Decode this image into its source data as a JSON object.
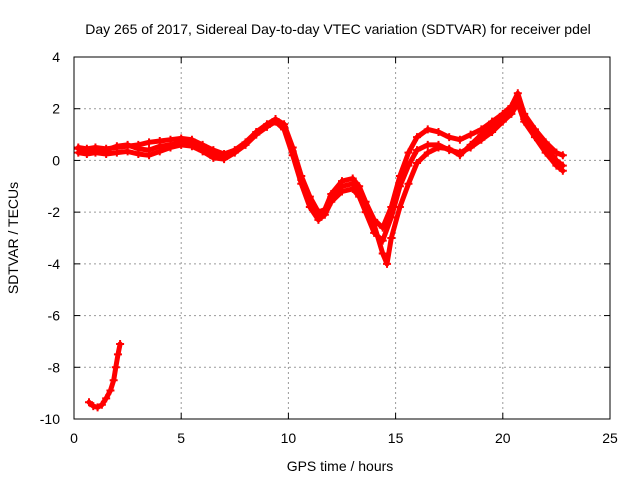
{
  "chart_data": {
    "type": "scatter",
    "title": "Day 265 of 2017, Sidereal Day-to-day VTEC variation (SDTVAR) for receiver pdel",
    "xlabel": "GPS time / hours",
    "ylabel": "SDTVAR / TECUs",
    "xlim": [
      0,
      25
    ],
    "ylim": [
      -10,
      4
    ],
    "xticks": [
      0,
      5,
      10,
      15,
      20,
      25
    ],
    "yticks": [
      -10,
      -8,
      -6,
      -4,
      -2,
      0,
      2,
      4
    ],
    "xtick_labels": [
      "0",
      "5",
      "10",
      "15",
      "20",
      "25"
    ],
    "ytick_labels": [
      "-10",
      "-8",
      "-6",
      "-4",
      "-2",
      "0",
      "2",
      "4"
    ],
    "grid": true,
    "legend": "none",
    "marker": "+",
    "color": "#ff0000",
    "series": [
      {
        "name": "track-1",
        "points": [
          [
            0.2,
            0.5
          ],
          [
            0.6,
            0.45
          ],
          [
            1.0,
            0.5
          ],
          [
            1.5,
            0.45
          ],
          [
            2.0,
            0.5
          ],
          [
            2.5,
            0.55
          ],
          [
            3.0,
            0.6
          ],
          [
            3.5,
            0.7
          ],
          [
            4.0,
            0.75
          ],
          [
            4.5,
            0.8
          ],
          [
            5.0,
            0.85
          ],
          [
            5.5,
            0.8
          ],
          [
            6.0,
            0.6
          ],
          [
            6.5,
            0.4
          ],
          [
            7.0,
            0.25
          ],
          [
            7.5,
            0.4
          ],
          [
            8.0,
            0.7
          ],
          [
            8.5,
            1.1
          ],
          [
            9.0,
            1.4
          ],
          [
            9.4,
            1.6
          ],
          [
            9.8,
            1.4
          ],
          [
            10.2,
            0.5
          ],
          [
            10.6,
            -0.6
          ],
          [
            11.0,
            -1.4
          ],
          [
            11.4,
            -2.0
          ],
          [
            11.7,
            -1.9
          ],
          [
            12.0,
            -1.3
          ],
          [
            12.5,
            -0.8
          ],
          [
            13.0,
            -0.7
          ],
          [
            13.3,
            -1.0
          ],
          [
            13.6,
            -1.6
          ],
          [
            14.0,
            -2.3
          ],
          [
            14.4,
            -2.6
          ],
          [
            14.8,
            -1.8
          ],
          [
            15.2,
            -0.6
          ],
          [
            15.6,
            0.3
          ],
          [
            16.0,
            0.9
          ],
          [
            16.5,
            1.2
          ],
          [
            17.0,
            1.1
          ],
          [
            17.5,
            0.9
          ],
          [
            18.0,
            0.8
          ],
          [
            18.5,
            1.0
          ],
          [
            19.0,
            1.2
          ],
          [
            19.5,
            1.5
          ],
          [
            20.0,
            1.8
          ],
          [
            20.4,
            2.1
          ],
          [
            20.7,
            2.6
          ],
          [
            21.0,
            1.8
          ],
          [
            21.5,
            1.2
          ],
          [
            22.0,
            0.7
          ],
          [
            22.5,
            0.3
          ],
          [
            22.8,
            0.2
          ]
        ]
      },
      {
        "name": "track-2",
        "points": [
          [
            0.2,
            0.3
          ],
          [
            0.6,
            0.25
          ],
          [
            1.0,
            0.3
          ],
          [
            1.5,
            0.25
          ],
          [
            2.0,
            0.3
          ],
          [
            2.5,
            0.35
          ],
          [
            3.0,
            0.25
          ],
          [
            3.5,
            0.2
          ],
          [
            4.0,
            0.35
          ],
          [
            4.5,
            0.5
          ],
          [
            5.0,
            0.6
          ],
          [
            5.5,
            0.55
          ],
          [
            6.0,
            0.35
          ],
          [
            6.5,
            0.1
          ],
          [
            7.0,
            0.05
          ],
          [
            7.5,
            0.3
          ],
          [
            8.0,
            0.6
          ],
          [
            8.5,
            1.0
          ],
          [
            9.0,
            1.3
          ],
          [
            9.4,
            1.5
          ],
          [
            9.8,
            1.2
          ],
          [
            10.2,
            0.2
          ],
          [
            10.6,
            -0.9
          ],
          [
            11.0,
            -1.8
          ],
          [
            11.4,
            -2.3
          ],
          [
            11.7,
            -2.1
          ],
          [
            12.0,
            -1.6
          ],
          [
            12.5,
            -1.2
          ],
          [
            13.0,
            -1.1
          ],
          [
            13.3,
            -1.4
          ],
          [
            13.6,
            -2.0
          ],
          [
            14.0,
            -2.8
          ],
          [
            14.4,
            -3.1
          ],
          [
            14.8,
            -2.2
          ],
          [
            15.2,
            -1.0
          ],
          [
            15.6,
            -0.2
          ],
          [
            16.0,
            0.4
          ],
          [
            16.5,
            0.6
          ],
          [
            17.0,
            0.6
          ],
          [
            17.5,
            0.4
          ],
          [
            18.0,
            0.3
          ],
          [
            18.5,
            0.5
          ],
          [
            19.0,
            0.8
          ],
          [
            19.5,
            1.1
          ],
          [
            20.0,
            1.5
          ],
          [
            20.4,
            1.8
          ],
          [
            20.7,
            2.2
          ],
          [
            21.0,
            1.5
          ],
          [
            21.5,
            0.9
          ],
          [
            22.0,
            0.3
          ],
          [
            22.5,
            -0.2
          ],
          [
            22.8,
            -0.4
          ]
        ]
      },
      {
        "name": "track-3",
        "points": [
          [
            0.2,
            0.45
          ],
          [
            0.6,
            0.4
          ],
          [
            1.0,
            0.35
          ],
          [
            1.5,
            0.4
          ],
          [
            2.0,
            0.55
          ],
          [
            2.5,
            0.6
          ],
          [
            3.0,
            0.45
          ],
          [
            3.5,
            0.4
          ],
          [
            4.0,
            0.55
          ],
          [
            4.5,
            0.6
          ],
          [
            5.0,
            0.7
          ],
          [
            5.5,
            0.7
          ],
          [
            6.0,
            0.5
          ],
          [
            6.5,
            0.3
          ],
          [
            7.0,
            0.15
          ],
          [
            7.5,
            0.35
          ],
          [
            8.0,
            0.65
          ],
          [
            8.5,
            1.05
          ],
          [
            9.0,
            1.35
          ],
          [
            9.4,
            1.55
          ],
          [
            9.8,
            1.3
          ],
          [
            10.2,
            0.35
          ],
          [
            10.6,
            -0.75
          ],
          [
            11.0,
            -1.6
          ],
          [
            11.4,
            -2.1
          ],
          [
            11.7,
            -2.0
          ],
          [
            12.0,
            -1.4
          ],
          [
            12.5,
            -1.0
          ],
          [
            13.0,
            -0.9
          ],
          [
            13.3,
            -1.2
          ],
          [
            13.6,
            -1.8
          ],
          [
            14.0,
            -2.5
          ],
          [
            14.4,
            -3.6
          ],
          [
            14.6,
            -4.0
          ],
          [
            14.8,
            -3.0
          ],
          [
            15.2,
            -1.8
          ],
          [
            15.6,
            -0.9
          ],
          [
            16.0,
            -0.1
          ],
          [
            16.5,
            0.3
          ],
          [
            17.0,
            0.5
          ],
          [
            17.5,
            0.45
          ],
          [
            18.0,
            0.2
          ],
          [
            18.5,
            0.6
          ],
          [
            19.0,
            1.0
          ],
          [
            19.5,
            1.3
          ],
          [
            20.0,
            1.6
          ],
          [
            20.4,
            1.9
          ],
          [
            20.7,
            2.3
          ],
          [
            21.0,
            1.6
          ],
          [
            21.5,
            1.0
          ],
          [
            22.0,
            0.5
          ],
          [
            22.5,
            0.0
          ],
          [
            22.8,
            -0.2
          ]
        ]
      },
      {
        "name": "track-4",
        "points": [
          [
            0.7,
            -9.35
          ],
          [
            0.9,
            -9.5
          ],
          [
            1.1,
            -9.55
          ],
          [
            1.3,
            -9.45
          ],
          [
            1.5,
            -9.2
          ],
          [
            1.7,
            -8.9
          ],
          [
            1.85,
            -8.5
          ],
          [
            1.95,
            -8.0
          ],
          [
            2.05,
            -7.5
          ],
          [
            2.15,
            -7.1
          ]
        ]
      }
    ]
  }
}
